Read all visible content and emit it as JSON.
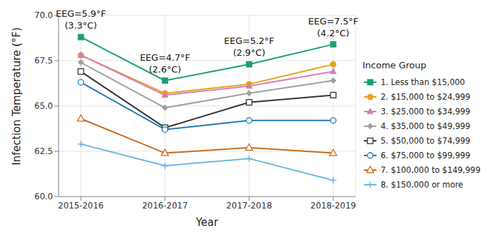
{
  "chart_data": {
    "type": "line",
    "x_label": "Year",
    "y_label": "Infection Temperature (°F)",
    "categories": [
      "2015-2016",
      "2016-2017",
      "2017-2018",
      "2018-2019"
    ],
    "series": [
      {
        "name": "1. Less than $15,000",
        "color": "#1b9e77",
        "marker": "square",
        "values": [
          68.8,
          66.4,
          67.3,
          68.4
        ]
      },
      {
        "name": "2. $15,000 to $24,999",
        "color": "#e6a519",
        "marker": "circle",
        "values": [
          67.8,
          65.7,
          66.2,
          67.3
        ]
      },
      {
        "name": "3. $25,000 to $34,999",
        "color": "#d97bb6",
        "marker": "triangle",
        "values": [
          67.8,
          65.6,
          66.1,
          66.9
        ]
      },
      {
        "name": "4. $35,000 to $49,999",
        "color": "#a0a0a0",
        "marker": "diamond",
        "values": [
          67.4,
          64.9,
          65.7,
          66.4
        ]
      },
      {
        "name": "5. $50,000 to $74,999",
        "color": "#333333",
        "marker": "square-open",
        "values": [
          66.9,
          63.8,
          65.2,
          65.6
        ]
      },
      {
        "name": "6. $75,000 to $99,999",
        "color": "#1f78b4",
        "marker": "circle-open",
        "values": [
          66.3,
          63.7,
          64.2,
          64.2
        ]
      },
      {
        "name": "7. $100,000 to $149,999",
        "color": "#cc6a1a",
        "marker": "triangle-open",
        "values": [
          64.3,
          62.4,
          62.7,
          62.4
        ]
      },
      {
        "name": "8. $150,000 or more",
        "color": "#6bb6e0",
        "marker": "plus",
        "values": [
          62.9,
          61.7,
          62.1,
          60.9
        ]
      }
    ],
    "ylim": [
      60,
      70
    ],
    "yticks": [
      {
        "value": 60,
        "label": "60.0"
      },
      62.5,
      {
        "value": 65,
        "label": "65.0"
      },
      67.5,
      {
        "value": 70,
        "label": "70.0"
      }
    ],
    "grid": true,
    "legend": "right",
    "legend_title": "Income Group",
    "annotations": [
      {
        "x": "2015-2016",
        "text": [
          "EEG=5.9°F",
          "(3.3°C)"
        ]
      },
      {
        "x": "2016-2017",
        "text": [
          "EEG=4.7°F",
          "(2.6°C)"
        ]
      },
      {
        "x": "2017-2018",
        "text": [
          "EEG=5.2°F",
          "(2.9°C)"
        ]
      },
      {
        "x": "2018-2019",
        "text": [
          "EEG=7.5°F",
          "(4.2°C)"
        ]
      }
    ]
  }
}
